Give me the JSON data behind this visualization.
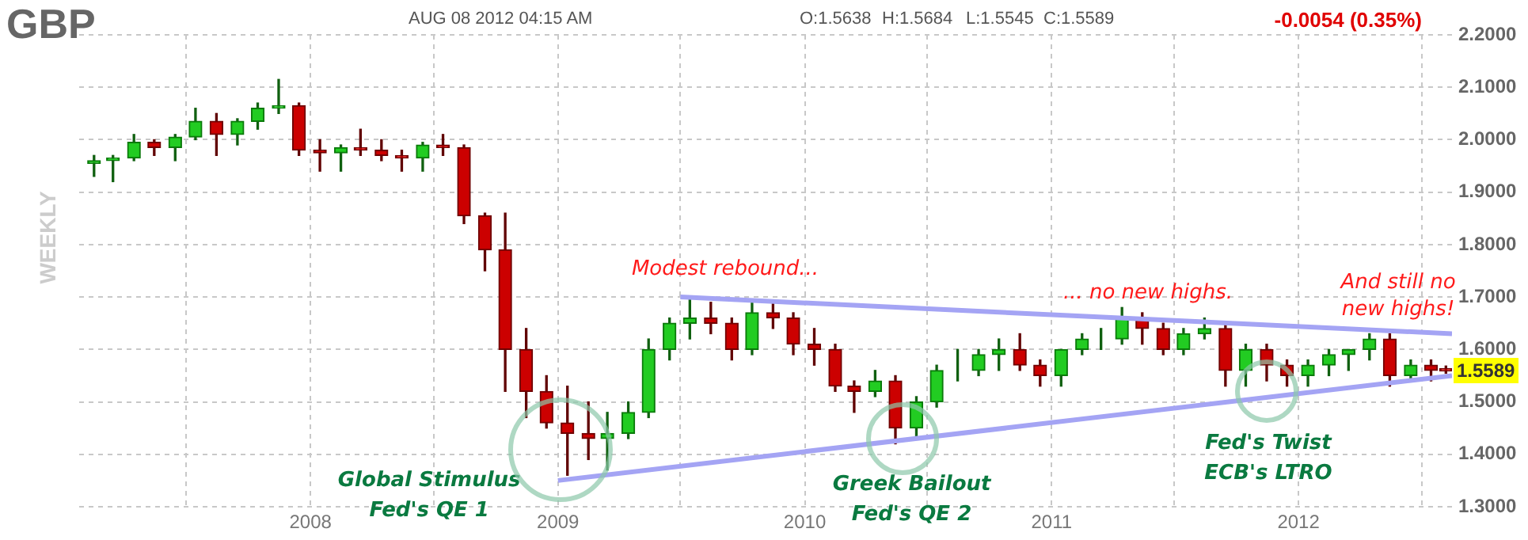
{
  "chart_data": {
    "type": "candlestick",
    "title": "GBP",
    "subtitle": "AUG 08 2012 04:15 AM",
    "ylabel": "WEEKLY",
    "x": [
      "2007-02-15",
      "2007-03-15",
      "2007-04-15",
      "2007-05-15",
      "2007-06-15",
      "2007-07-15",
      "2007-08-15",
      "2007-09-15",
      "2007-10-15",
      "2007-11-15",
      "2007-12-15",
      "2008-01-15",
      "2008-02-15",
      "2008-03-15",
      "2008-04-15",
      "2008-05-15",
      "2008-06-15",
      "2008-07-15",
      "2008-08-15",
      "2008-09-15",
      "2008-10-15",
      "2008-11-15",
      "2008-12-15",
      "2009-01-15",
      "2009-02-15",
      "2009-03-15",
      "2009-04-15",
      "2009-05-15",
      "2009-06-15",
      "2009-07-15",
      "2009-08-15",
      "2009-09-15",
      "2009-10-15",
      "2009-11-15",
      "2009-12-15",
      "2010-01-15",
      "2010-02-15",
      "2010-03-15",
      "2010-04-15",
      "2010-05-15",
      "2010-06-15",
      "2010-07-15",
      "2010-08-15",
      "2010-09-15",
      "2010-10-15",
      "2010-11-15",
      "2010-12-15",
      "2011-01-15",
      "2011-02-15",
      "2011-03-15",
      "2011-04-15",
      "2011-05-15",
      "2011-06-15",
      "2011-07-15",
      "2011-08-15",
      "2011-09-15",
      "2011-10-15",
      "2011-11-15",
      "2011-12-15",
      "2012-01-15",
      "2012-02-15",
      "2012-03-15",
      "2012-04-15",
      "2012-05-15",
      "2012-06-15",
      "2012-07-15",
      "2012-08-06"
    ],
    "ohlc": [
      [
        1.955,
        1.97,
        1.93,
        1.96
      ],
      [
        1.96,
        1.97,
        1.92,
        1.965
      ],
      [
        1.965,
        2.01,
        1.96,
        1.995
      ],
      [
        1.995,
        2.0,
        1.97,
        1.985
      ],
      [
        1.985,
        2.01,
        1.96,
        2.005
      ],
      [
        2.005,
        2.06,
        2.0,
        2.035
      ],
      [
        2.035,
        2.05,
        1.97,
        2.01
      ],
      [
        2.01,
        2.04,
        1.99,
        2.035
      ],
      [
        2.035,
        2.07,
        2.02,
        2.06
      ],
      [
        2.06,
        2.115,
        2.05,
        2.065
      ],
      [
        2.065,
        2.07,
        1.97,
        1.98
      ],
      [
        1.98,
        2.0,
        1.94,
        1.975
      ],
      [
        1.975,
        1.99,
        1.94,
        1.985
      ],
      [
        1.985,
        2.02,
        1.97,
        1.98
      ],
      [
        1.98,
        2.0,
        1.96,
        1.97
      ],
      [
        1.97,
        1.98,
        1.94,
        1.965
      ],
      [
        1.965,
        1.995,
        1.94,
        1.99
      ],
      [
        1.99,
        2.01,
        1.97,
        1.985
      ],
      [
        1.985,
        1.99,
        1.84,
        1.855
      ],
      [
        1.855,
        1.86,
        1.75,
        1.79
      ],
      [
        1.79,
        1.86,
        1.52,
        1.6
      ],
      [
        1.6,
        1.64,
        1.47,
        1.52
      ],
      [
        1.52,
        1.55,
        1.45,
        1.46
      ],
      [
        1.46,
        1.53,
        1.36,
        1.44
      ],
      [
        1.44,
        1.5,
        1.39,
        1.43
      ],
      [
        1.43,
        1.48,
        1.37,
        1.44
      ],
      [
        1.44,
        1.5,
        1.43,
        1.48
      ],
      [
        1.48,
        1.62,
        1.47,
        1.6
      ],
      [
        1.6,
        1.66,
        1.58,
        1.65
      ],
      [
        1.65,
        1.7,
        1.62,
        1.66
      ],
      [
        1.66,
        1.69,
        1.63,
        1.65
      ],
      [
        1.65,
        1.66,
        1.58,
        1.6
      ],
      [
        1.6,
        1.69,
        1.59,
        1.67
      ],
      [
        1.67,
        1.69,
        1.64,
        1.66
      ],
      [
        1.66,
        1.67,
        1.59,
        1.61
      ],
      [
        1.61,
        1.64,
        1.57,
        1.6
      ],
      [
        1.6,
        1.61,
        1.52,
        1.53
      ],
      [
        1.53,
        1.54,
        1.48,
        1.52
      ],
      [
        1.52,
        1.56,
        1.51,
        1.54
      ],
      [
        1.54,
        1.55,
        1.42,
        1.45
      ],
      [
        1.45,
        1.51,
        1.43,
        1.5
      ],
      [
        1.5,
        1.57,
        1.49,
        1.56
      ],
      [
        1.56,
        1.6,
        1.54,
        1.56
      ],
      [
        1.56,
        1.6,
        1.55,
        1.59
      ],
      [
        1.59,
        1.62,
        1.56,
        1.6
      ],
      [
        1.6,
        1.63,
        1.56,
        1.57
      ],
      [
        1.57,
        1.58,
        1.53,
        1.55
      ],
      [
        1.55,
        1.6,
        1.53,
        1.6
      ],
      [
        1.6,
        1.63,
        1.59,
        1.62
      ],
      [
        1.62,
        1.64,
        1.6,
        1.62
      ],
      [
        1.62,
        1.68,
        1.61,
        1.66
      ],
      [
        1.66,
        1.67,
        1.61,
        1.64
      ],
      [
        1.64,
        1.65,
        1.59,
        1.6
      ],
      [
        1.6,
        1.64,
        1.59,
        1.63
      ],
      [
        1.63,
        1.66,
        1.62,
        1.64
      ],
      [
        1.64,
        1.65,
        1.53,
        1.56
      ],
      [
        1.56,
        1.61,
        1.53,
        1.6
      ],
      [
        1.6,
        1.61,
        1.54,
        1.57
      ],
      [
        1.57,
        1.58,
        1.53,
        1.55
      ],
      [
        1.55,
        1.58,
        1.53,
        1.57
      ],
      [
        1.57,
        1.6,
        1.55,
        1.59
      ],
      [
        1.59,
        1.6,
        1.56,
        1.6
      ],
      [
        1.6,
        1.63,
        1.58,
        1.62
      ],
      [
        1.62,
        1.63,
        1.53,
        1.55
      ],
      [
        1.55,
        1.58,
        1.54,
        1.57
      ],
      [
        1.57,
        1.58,
        1.54,
        1.56
      ],
      [
        1.5638,
        1.5684,
        1.5545,
        1.5589
      ]
    ],
    "series": [
      {
        "type": "line",
        "color": "#a4a4f4",
        "x": [
          "2009-07-01",
          "2012-08-15"
        ],
        "values": [
          1.7,
          1.63
        ]
      },
      {
        "type": "line",
        "color": "#a4a4f4",
        "x": [
          "2009-01-01",
          "2012-08-15"
        ],
        "values": [
          1.35,
          1.55
        ]
      }
    ],
    "xlim": [
      "2007-01-24",
      "2012-08-15"
    ],
    "xticks": [
      {
        "value": "2007-07",
        "label": null
      },
      "2008",
      {
        "value": "2008-07",
        "label": null
      },
      "2009",
      {
        "value": "2009-07",
        "label": null
      },
      "2010",
      {
        "value": "2010-07",
        "label": null
      },
      "2011",
      {
        "value": "2011-07",
        "label": null
      },
      "2012",
      {
        "value": "2012-07",
        "label": null
      }
    ],
    "ylim": [
      1.3,
      2.2
    ],
    "yticks": [
      {
        "value": 1.3,
        "label": "1.3000"
      },
      {
        "value": 1.4,
        "label": "1.4000"
      },
      {
        "value": 1.5,
        "label": "1.5000"
      },
      {
        "value": 1.6,
        "label": "1.6000"
      },
      {
        "value": 1.7,
        "label": "1.7000"
      },
      {
        "value": 1.8,
        "label": "1.8000"
      },
      {
        "value": 1.9,
        "label": "1.9000"
      },
      {
        "value": 2.0,
        "label": "2.0000"
      },
      {
        "value": 2.1,
        "label": "2.1000"
      },
      {
        "value": 2.2,
        "label": "2.2000"
      }
    ],
    "grid": true,
    "annotations": [
      "O:1.5638",
      "H:1.5684",
      "L:1.5545",
      "C:1.5589",
      "-0.0054 (0.35%)",
      "Modest rebound...",
      "... no new highs.",
      "And still no\nnew highs!",
      "1.5589",
      {
        "text": "Global Stimulus\nFed's QE 1",
        "x": "2009-01-05",
        "y": 1.41
      },
      {
        "text": "Greek Bailout\nFed's QE 2",
        "x": "2010-05-25",
        "y": 1.43
      },
      {
        "text": "Fed's Twist\nECB's LTRO",
        "x": "2011-11-15",
        "y": 1.52
      }
    ]
  }
}
